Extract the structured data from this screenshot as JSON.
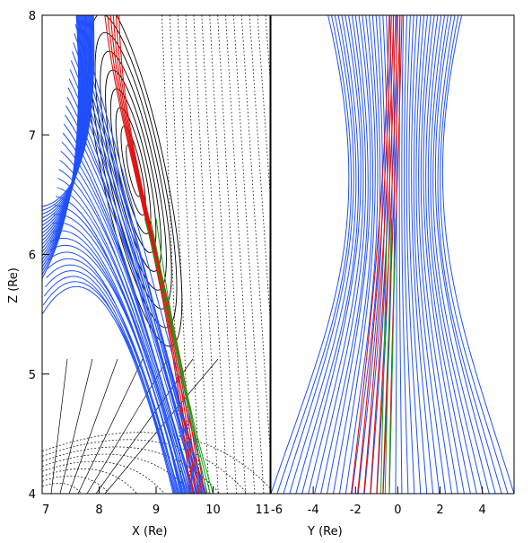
{
  "chart_data": [
    {
      "type": "line",
      "panel": "left",
      "xlabel": "X (Re)",
      "ylabel": "Z (Re)",
      "xlim": [
        7,
        11
      ],
      "ylim": [
        4,
        8
      ],
      "xticks": [
        "7",
        "8",
        "9",
        "10",
        "11"
      ],
      "yticks": [
        "4",
        "5",
        "6",
        "7",
        "8"
      ],
      "grid": false,
      "colors": {
        "field_lines": "#1f4fff",
        "red_traces": "#e01010",
        "green_traces": "#10a010",
        "contours": "#000000"
      },
      "contour_center": [
        8.6,
        6.7
      ]
    },
    {
      "type": "line",
      "panel": "right",
      "xlabel": "Y (Re)",
      "ylabel": "",
      "xlim": [
        -6,
        5.5
      ],
      "ylim": [
        4,
        8
      ],
      "xticks": [
        "-6",
        "-4",
        "-2",
        "0",
        "2",
        "4"
      ],
      "grid": false,
      "colors": {
        "field_lines": "#1f4fff",
        "red_traces": "#e01010",
        "green_traces": "#10a010"
      }
    }
  ]
}
